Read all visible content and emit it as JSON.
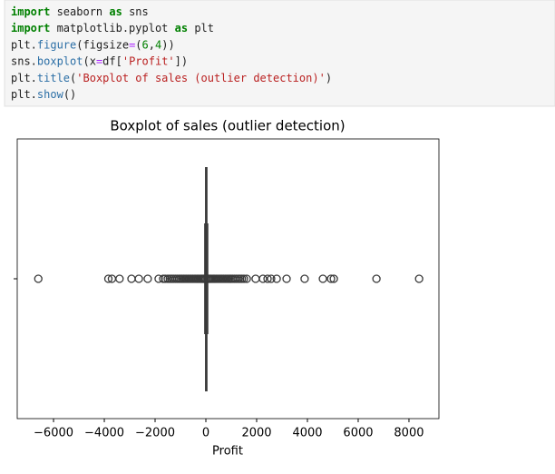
{
  "code": {
    "lines": [
      [
        {
          "text": "import",
          "color": "#008000"
        },
        {
          "text": " seaborn ",
          "color": "#212121"
        },
        {
          "text": "as",
          "color": "#008000"
        },
        {
          "text": " sns",
          "color": "#212121"
        }
      ],
      [
        {
          "text": "import",
          "color": "#008000"
        },
        {
          "text": " matplotlib.pyplot ",
          "color": "#212121"
        },
        {
          "text": "as",
          "color": "#008000"
        },
        {
          "text": " plt",
          "color": "#212121"
        }
      ],
      [
        {
          "text": "plt.",
          "color": "#212121"
        },
        {
          "text": "figure",
          "color": "#2c6fa6"
        },
        {
          "text": "(figsize",
          "color": "#212121"
        },
        {
          "text": "=",
          "color": "#aa22ff"
        },
        {
          "text": "(",
          "color": "#212121"
        },
        {
          "text": "6",
          "color": "#008000"
        },
        {
          "text": ",",
          "color": "#212121"
        },
        {
          "text": "4",
          "color": "#008000"
        },
        {
          "text": "))",
          "color": "#212121"
        }
      ],
      [
        {
          "text": "sns.",
          "color": "#212121"
        },
        {
          "text": "boxplot",
          "color": "#2c6fa6"
        },
        {
          "text": "(x",
          "color": "#212121"
        },
        {
          "text": "=",
          "color": "#aa22ff"
        },
        {
          "text": "df[",
          "color": "#212121"
        },
        {
          "text": "'Profit'",
          "color": "#ba2121"
        },
        {
          "text": "])",
          "color": "#212121"
        }
      ],
      [
        {
          "text": "plt.",
          "color": "#212121"
        },
        {
          "text": "title",
          "color": "#2c6fa6"
        },
        {
          "text": "(",
          "color": "#212121"
        },
        {
          "text": "'Boxplot of sales (outlier detection)'",
          "color": "#ba2121"
        },
        {
          "text": ")",
          "color": "#212121"
        }
      ],
      [
        {
          "text": "plt.",
          "color": "#212121"
        },
        {
          "text": "show",
          "color": "#2c6fa6"
        },
        {
          "text": "()",
          "color": "#212121"
        }
      ]
    ]
  },
  "chart_data": {
    "type": "box",
    "title": "Boxplot of sales (outlier detection)",
    "x_label": "Profit",
    "xlim": [
      -7430,
      9180
    ],
    "xticks": [
      {
        "value": -6000,
        "label": "−6000"
      },
      {
        "value": -4000,
        "label": "−4000"
      },
      {
        "value": -2000,
        "label": "−2000"
      },
      0,
      2000,
      4000,
      6000,
      8000
    ],
    "color": "#3a3a3a",
    "whislo": -40,
    "q1": 2,
    "median": 9,
    "q3": 29,
    "whishi": 71,
    "outliers": [
      -6600,
      -3840,
      -3700,
      -3400,
      -2930,
      -2640,
      -2290,
      -1860,
      -1680,
      -1600,
      -1500,
      -1420,
      -1350,
      -1280,
      -1200,
      -1130,
      -1060,
      -1000,
      -940,
      -880,
      -820,
      -760,
      -700,
      -640,
      -580,
      -520,
      -460,
      -400,
      -350,
      -300,
      -250,
      -200,
      -160,
      -120,
      -90,
      -60,
      90,
      120,
      160,
      200,
      250,
      300,
      350,
      400,
      460,
      520,
      580,
      640,
      700,
      760,
      820,
      880,
      940,
      1000,
      1060,
      1130,
      1200,
      1280,
      1350,
      1420,
      1500,
      1610,
      1960,
      2250,
      2430,
      2570,
      2790,
      3180,
      3890,
      4610,
      4930,
      5040,
      6720,
      8400
    ]
  }
}
